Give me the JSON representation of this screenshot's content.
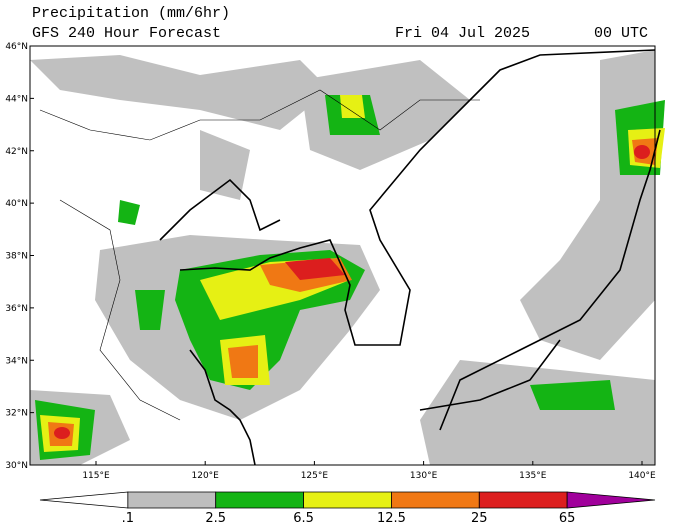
{
  "header": {
    "title": "Precipitation (mm/6hr)",
    "subtitle": "GFS 240 Hour Forecast",
    "date": "Fri 04 Jul 2025",
    "time": "00 UTC"
  },
  "map": {
    "lat_labels": [
      "46°N",
      "44°N",
      "42°N",
      "40°N",
      "38°N",
      "36°N",
      "34°N",
      "32°N",
      "30°N"
    ],
    "lon_labels": [
      "115°E",
      "120°E",
      "125°E",
      "130°E",
      "135°E",
      "140°E"
    ]
  },
  "colorbar": {
    "labels": [
      ".1",
      "2.5",
      "6.5",
      "12.5",
      "25",
      "65"
    ],
    "colors": [
      "#ffffff",
      "#bebebe",
      "#14b414",
      "#e6f014",
      "#f07814",
      "#dc1e1e",
      "#a0009b"
    ]
  }
}
